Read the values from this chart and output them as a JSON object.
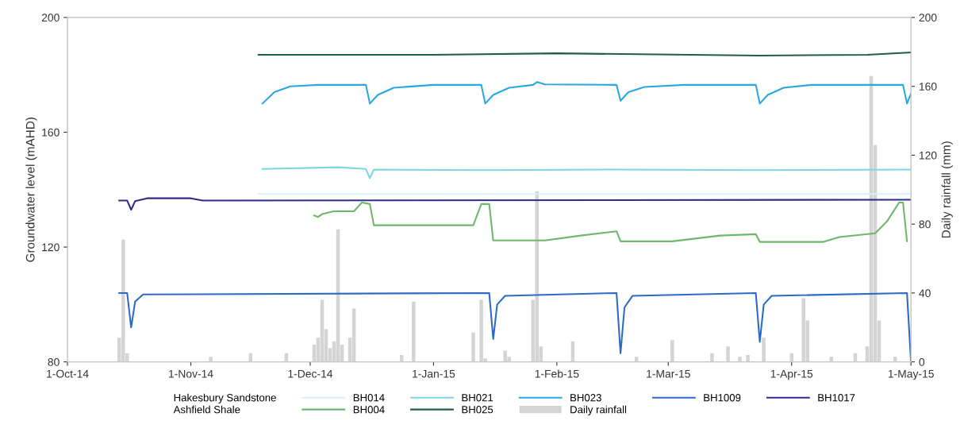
{
  "chart_data": {
    "type": "line",
    "ylabel": "Groundwater level (mAHD)",
    "y2label": "Daily rainfall (mm)",
    "xlim": [
      "2014-10-01",
      "2015-05-01"
    ],
    "xticks": [
      {
        "value": "2014-10-01",
        "label": "1-Oct-14"
      },
      {
        "value": "2014-11-01",
        "label": "1-Nov-14"
      },
      {
        "value": "2014-12-01",
        "label": "1-Dec-14"
      },
      {
        "value": "2015-01-01",
        "label": "1-Jan-15"
      },
      {
        "value": "2015-02-01",
        "label": "1-Feb-15"
      },
      {
        "value": "2015-03-01",
        "label": "1-Mar-15"
      },
      {
        "value": "2015-04-01",
        "label": "1-Apr-15"
      },
      {
        "value": "2015-05-01",
        "label": "1-May-15"
      }
    ],
    "ylim": [
      80,
      200
    ],
    "yticks": [
      80,
      120,
      160,
      200
    ],
    "y2lim": [
      0,
      200
    ],
    "y2ticks": [
      0,
      40,
      80,
      120,
      160,
      200
    ],
    "grid": false,
    "legend": "bottom",
    "annotations": [
      "Hakesbury Sandstone",
      "Ashfield Shale"
    ],
    "series": [
      {
        "name": "BH014",
        "color": "#d6f2f2",
        "x": [
          "2014-11-18",
          "2015-05-01"
        ],
        "values": [
          138.5,
          138.5
        ]
      },
      {
        "name": "BH021",
        "color": "#7dd6e0",
        "x": [
          "2014-11-19",
          "2014-12-08",
          "2014-12-15",
          "2014-12-16",
          "2014-12-17",
          "2015-01-14",
          "2015-02-16",
          "2015-03-24",
          "2015-05-01"
        ],
        "values": [
          147.2,
          147.8,
          147.2,
          144,
          147,
          146.8,
          147,
          146.8,
          147
        ]
      },
      {
        "name": "BH023",
        "color": "#29a8df",
        "x": [
          "2014-11-19",
          "2014-11-22",
          "2014-11-26",
          "2014-12-03",
          "2014-12-15",
          "2014-12-16",
          "2014-12-18",
          "2014-12-22",
          "2015-01-01",
          "2015-01-13",
          "2015-01-14",
          "2015-01-16",
          "2015-01-20",
          "2015-01-26",
          "2015-01-27",
          "2015-01-29",
          "2015-02-16",
          "2015-02-17",
          "2015-02-19",
          "2015-02-23",
          "2015-03-05",
          "2015-03-23",
          "2015-03-24",
          "2015-03-26",
          "2015-03-30",
          "2015-04-06",
          "2015-04-29",
          "2015-04-30",
          "2015-05-01"
        ],
        "values": [
          170,
          174,
          176,
          176.5,
          176.5,
          170,
          173,
          175.5,
          176.5,
          176.5,
          170,
          173,
          175.5,
          176.5,
          177.5,
          176.7,
          176.5,
          171,
          174,
          175.8,
          176.5,
          176.5,
          170,
          173,
          175.5,
          176.5,
          176.5,
          170,
          173.5
        ]
      },
      {
        "name": "BH1009",
        "color": "#2e6bc4",
        "x": [
          "2014-10-14",
          "2014-10-16",
          "2014-10-17",
          "2014-10-18",
          "2014-10-20",
          "2015-01-15",
          "2015-01-16",
          "2015-01-17",
          "2015-01-19",
          "2015-02-16",
          "2015-02-17",
          "2015-02-18",
          "2015-02-20",
          "2015-03-23",
          "2015-03-24",
          "2015-03-25",
          "2015-03-27",
          "2015-04-30",
          "2015-05-01"
        ],
        "values": [
          104,
          104,
          92,
          101,
          103.5,
          104,
          88,
          100,
          103,
          104,
          83,
          99,
          103,
          104,
          87,
          100,
          103,
          104,
          80
        ]
      },
      {
        "name": "BH1017",
        "color": "#2e2e8a",
        "x": [
          "2014-10-14",
          "2014-10-16",
          "2014-10-17",
          "2014-10-18",
          "2014-10-21",
          "2014-11-01",
          "2014-11-04",
          "2015-05-01"
        ],
        "values": [
          136.2,
          136.2,
          133,
          136,
          137,
          137,
          136.2,
          136.5
        ]
      },
      {
        "name": "BH004",
        "color": "#6db86a",
        "x": [
          "2014-12-02",
          "2014-12-03",
          "2014-12-04",
          "2014-12-07",
          "2014-12-12",
          "2014-12-14",
          "2014-12-16",
          "2014-12-17",
          "2015-01-11",
          "2015-01-13",
          "2015-01-15",
          "2015-01-16",
          "2015-01-29",
          "2015-02-07",
          "2015-02-16",
          "2015-02-17",
          "2015-03-02",
          "2015-03-14",
          "2015-03-23",
          "2015-03-24",
          "2015-04-09",
          "2015-04-13",
          "2015-04-22",
          "2015-04-25",
          "2015-04-28",
          "2015-04-29",
          "2015-04-30"
        ],
        "values": [
          131,
          130.5,
          131.5,
          132.5,
          132.5,
          135.5,
          135,
          127.6,
          127.6,
          135,
          135,
          122.3,
          122.3,
          124,
          125.5,
          122,
          122,
          124,
          124.5,
          121.8,
          121.8,
          123.5,
          124.8,
          129,
          135.5,
          135.5,
          122
        ]
      },
      {
        "name": "BH025",
        "color": "#1f5e4a",
        "x": [
          "2014-11-18",
          "2015-01-01",
          "2015-02-01",
          "2015-03-24",
          "2015-04-20",
          "2015-05-01"
        ],
        "values": [
          187,
          187,
          187.5,
          186.7,
          187,
          187.8
        ]
      },
      {
        "name": "Daily rainfall",
        "type": "bar",
        "axis": "y2",
        "color": "#d4d4d4",
        "x": [
          "2014-10-14",
          "2014-10-15",
          "2014-10-16",
          "2014-11-06",
          "2014-11-16",
          "2014-11-25",
          "2014-12-02",
          "2014-12-03",
          "2014-12-04",
          "2014-12-05",
          "2014-12-06",
          "2014-12-07",
          "2014-12-08",
          "2014-12-09",
          "2014-12-11",
          "2014-12-12",
          "2014-12-24",
          "2014-12-27",
          "2015-01-11",
          "2015-01-13",
          "2015-01-14",
          "2015-01-19",
          "2015-01-20",
          "2015-01-26",
          "2015-01-27",
          "2015-01-28",
          "2015-02-05",
          "2015-02-21",
          "2015-03-02",
          "2015-03-12",
          "2015-03-16",
          "2015-03-19",
          "2015-03-21",
          "2015-03-25",
          "2015-04-01",
          "2015-04-04",
          "2015-04-05",
          "2015-04-11",
          "2015-04-17",
          "2015-04-20",
          "2015-04-21",
          "2015-04-22",
          "2015-04-23",
          "2015-04-27"
        ],
        "values": [
          14,
          71,
          5,
          3,
          5,
          5,
          10,
          14,
          36,
          19,
          8,
          12,
          77,
          10,
          14,
          31,
          4,
          35,
          17,
          36,
          2,
          6.5,
          3,
          36,
          99,
          9,
          12,
          3,
          12.6,
          5,
          9,
          3,
          4,
          14,
          5,
          37,
          24,
          3,
          5,
          9,
          166,
          126,
          24,
          3
        ]
      }
    ]
  }
}
